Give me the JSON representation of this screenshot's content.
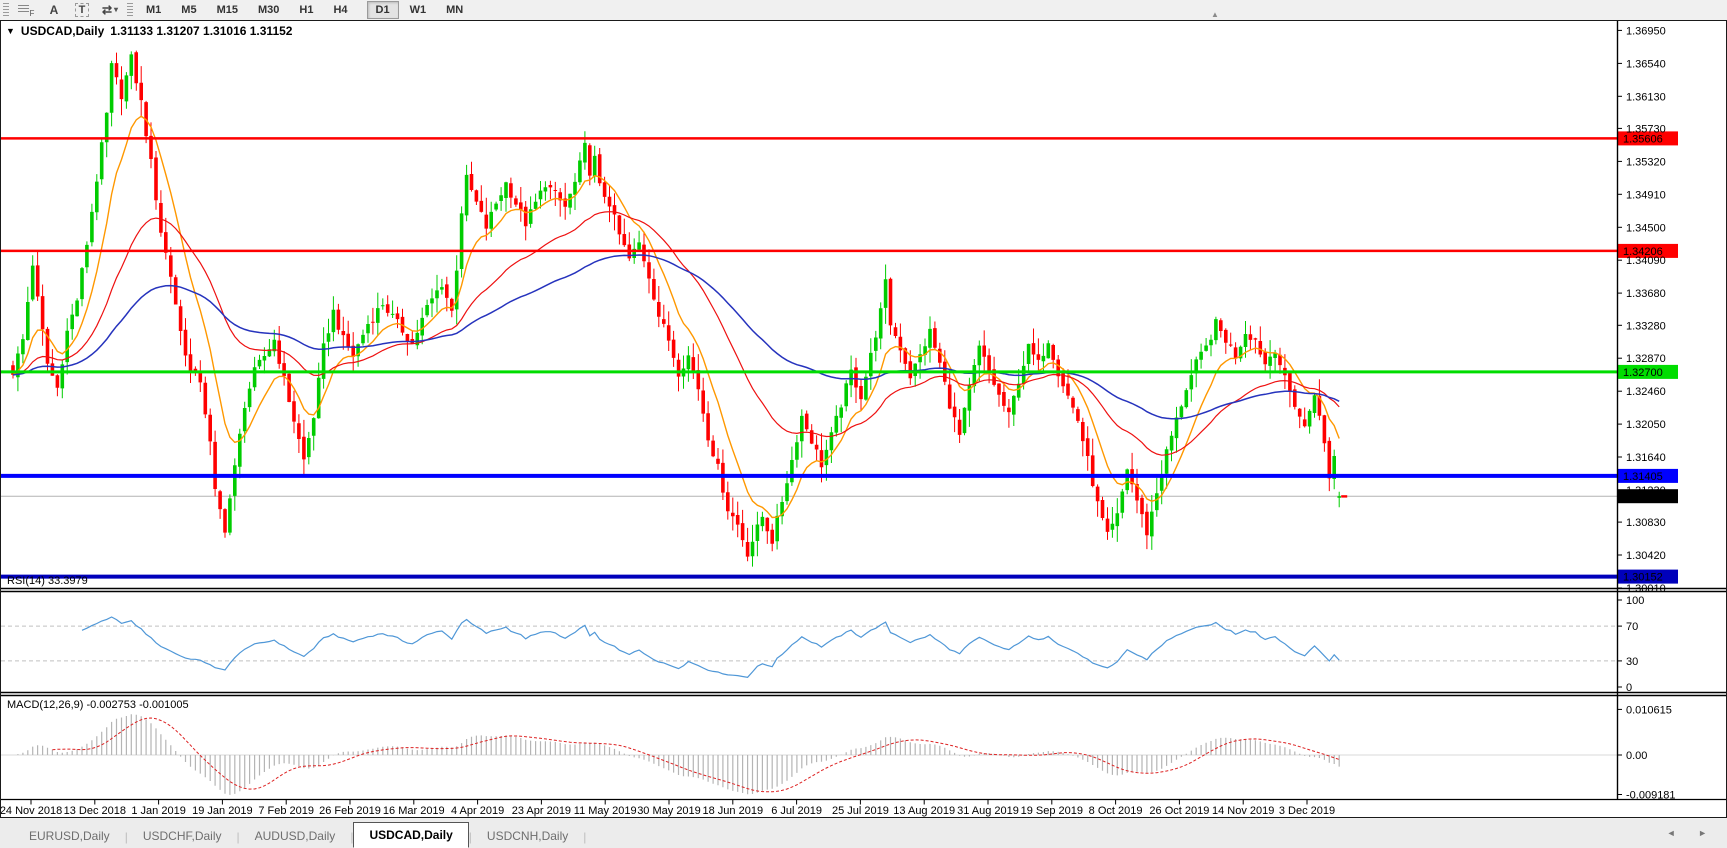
{
  "toolbar": {
    "icons": [
      {
        "name": "grid-f-icon",
        "glyph": "F"
      },
      {
        "name": "text-a-icon",
        "glyph": "A"
      },
      {
        "name": "textbox-t-icon",
        "glyph": "T"
      },
      {
        "name": "arrows-tool-icon",
        "glyph": "⇄",
        "caret": "▾"
      }
    ],
    "timeframes": [
      "M1",
      "M5",
      "M15",
      "M30",
      "H1",
      "H4",
      "D1",
      "W1",
      "MN"
    ],
    "active_timeframe": "D1",
    "shift_marker_glyph": "▲"
  },
  "chart": {
    "collapse_glyph": "▼",
    "symbol_label": "USDCAD,Daily",
    "ohlc_label": "1.31133 1.31207 1.31016 1.31152"
  },
  "indicators": {
    "rsi_label": "RSI(14) 33.3979",
    "macd_label": "MACD(12,26,9) -0.002753 -0.001005"
  },
  "tabs": {
    "items": [
      "EURUSD,Daily",
      "USDCHF,Daily",
      "AUDUSD,Daily",
      "USDCAD,Daily",
      "USDCNH,Daily"
    ],
    "active": "USDCAD,Daily",
    "scroll_left_glyph": "◄",
    "scroll_right_glyph": "►"
  },
  "chart_data": {
    "type": "candlestick",
    "symbol": "USDCAD",
    "timeframe": "Daily",
    "title": "USDCAD,Daily",
    "ohlc_display": {
      "open": "1.31133",
      "high": "1.31207",
      "low": "1.31016",
      "close": "1.31152"
    },
    "y_range": [
      1.3001,
      1.3703
    ],
    "price_axis_ticks": [
      "1.36950",
      "1.36540",
      "1.36130",
      "1.35730",
      "1.35320",
      "1.34910",
      "1.34500",
      "1.34090",
      "1.33680",
      "1.33280",
      "1.32870",
      "1.32460",
      "1.32050",
      "1.31640",
      "1.31230",
      "1.30830",
      "1.30420",
      "1.30010"
    ],
    "date_labels": [
      "24 Nov 2018",
      "13 Dec 2018",
      "1 Jan 2019",
      "19 Jan 2019",
      "7 Feb 2019",
      "26 Feb 2019",
      "16 Mar 2019",
      "4 Apr 2019",
      "23 Apr 2019",
      "11 May 2019",
      "30 May 2019",
      "18 Jun 2019",
      "6 Jul 2019",
      "25 Jul 2019",
      "13 Aug 2019",
      "31 Aug 2019",
      "19 Sep 2019",
      "8 Oct 2019",
      "26 Oct 2019",
      "14 Nov 2019",
      "3 Dec 2019"
    ],
    "levels": [
      {
        "value": 1.35606,
        "label": "1.35606",
        "color": "#ff0000",
        "text_color": "#ffffff",
        "thickness": 2.5
      },
      {
        "value": 1.34206,
        "label": "1.34206",
        "color": "#ff0000",
        "text_color": "#ffffff",
        "thickness": 2.5
      },
      {
        "value": 1.327,
        "label": "1.32700",
        "color": "#00dd00",
        "text_color": "#000000",
        "thickness": 3
      },
      {
        "value": 1.31405,
        "label": "1.31405",
        "color": "#0000ff",
        "text_color": "#ffffff",
        "thickness": 4
      },
      {
        "value": 1.30152,
        "label": "1.30152",
        "color": "#0000bb",
        "text_color": "#ffffff",
        "thickness": 4
      }
    ],
    "current_price": {
      "value": 1.31152,
      "label": "1.31152",
      "line_color": "#b4b4b4",
      "label_bg": "#000000",
      "label_fg": "#ffffff"
    },
    "candles": {
      "count": 270,
      "up_color": "#00cc00",
      "down_color": "#ff0000",
      "last_ohlc": {
        "open": 1.31133,
        "high": 1.31207,
        "low": 1.31016,
        "close": 1.31152
      }
    },
    "close_anchors": [
      [
        0,
        1.327
      ],
      [
        2,
        1.331
      ],
      [
        4,
        1.3405
      ],
      [
        5,
        1.336
      ],
      [
        7,
        1.328
      ],
      [
        9,
        1.325
      ],
      [
        11,
        1.332
      ],
      [
        13,
        1.336
      ],
      [
        15,
        1.343
      ],
      [
        17,
        1.351
      ],
      [
        19,
        1.359
      ],
      [
        20,
        1.365
      ],
      [
        22,
        1.3615
      ],
      [
        24,
        1.366
      ],
      [
        26,
        1.3605
      ],
      [
        28,
        1.353
      ],
      [
        30,
        1.3445
      ],
      [
        32,
        1.339
      ],
      [
        34,
        1.332
      ],
      [
        36,
        1.327
      ],
      [
        38,
        1.326
      ],
      [
        40,
        1.318
      ],
      [
        41,
        1.312
      ],
      [
        43,
        1.3075
      ],
      [
        45,
        1.315
      ],
      [
        47,
        1.323
      ],
      [
        49,
        1.327
      ],
      [
        51,
        1.329
      ],
      [
        53,
        1.331
      ],
      [
        55,
        1.326
      ],
      [
        57,
        1.321
      ],
      [
        59,
        1.316
      ],
      [
        61,
        1.3215
      ],
      [
        63,
        1.33
      ],
      [
        65,
        1.3345
      ],
      [
        67,
        1.331
      ],
      [
        69,
        1.329
      ],
      [
        72,
        1.333
      ],
      [
        75,
        1.3355
      ],
      [
        78,
        1.333
      ],
      [
        81,
        1.3305
      ],
      [
        84,
        1.335
      ],
      [
        87,
        1.338
      ],
      [
        89,
        1.3345
      ],
      [
        90,
        1.34
      ],
      [
        91,
        1.347
      ],
      [
        92,
        1.351
      ],
      [
        94,
        1.348
      ],
      [
        96,
        1.345
      ],
      [
        98,
        1.348
      ],
      [
        100,
        1.3505
      ],
      [
        102,
        1.348
      ],
      [
        104,
        1.3455
      ],
      [
        106,
        1.348
      ],
      [
        108,
        1.3505
      ],
      [
        110,
        1.349
      ],
      [
        112,
        1.3475
      ],
      [
        114,
        1.3505
      ],
      [
        116,
        1.355
      ],
      [
        117,
        1.352
      ],
      [
        118,
        1.3535
      ],
      [
        119,
        1.35
      ],
      [
        121,
        1.348
      ],
      [
        123,
        1.344
      ],
      [
        125,
        1.341
      ],
      [
        127,
        1.343
      ],
      [
        129,
        1.339
      ],
      [
        131,
        1.334
      ],
      [
        133,
        1.331
      ],
      [
        135,
        1.327
      ],
      [
        137,
        1.329
      ],
      [
        139,
        1.325
      ],
      [
        141,
        1.319
      ],
      [
        143,
        1.315
      ],
      [
        145,
        1.31
      ],
      [
        147,
        1.308
      ],
      [
        149,
        1.3045
      ],
      [
        150,
        1.306
      ],
      [
        152,
        1.309
      ],
      [
        154,
        1.306
      ],
      [
        156,
        1.311
      ],
      [
        158,
        1.316
      ],
      [
        160,
        1.3215
      ],
      [
        162,
        1.3185
      ],
      [
        164,
        1.3155
      ],
      [
        166,
        1.319
      ],
      [
        168,
        1.323
      ],
      [
        170,
        1.327
      ],
      [
        172,
        1.324
      ],
      [
        174,
        1.329
      ],
      [
        176,
        1.3345
      ],
      [
        177,
        1.338
      ],
      [
        178,
        1.333
      ],
      [
        180,
        1.33
      ],
      [
        182,
        1.3265
      ],
      [
        184,
        1.329
      ],
      [
        186,
        1.332
      ],
      [
        188,
        1.328
      ],
      [
        190,
        1.323
      ],
      [
        192,
        1.319
      ],
      [
        194,
        1.325
      ],
      [
        196,
        1.33
      ],
      [
        198,
        1.327
      ],
      [
        200,
        1.324
      ],
      [
        202,
        1.3215
      ],
      [
        204,
        1.326
      ],
      [
        206,
        1.33
      ],
      [
        208,
        1.328
      ],
      [
        210,
        1.331
      ],
      [
        212,
        1.327
      ],
      [
        214,
        1.324
      ],
      [
        216,
        1.321
      ],
      [
        218,
        1.316
      ],
      [
        220,
        1.3105
      ],
      [
        222,
        1.3065
      ],
      [
        224,
        1.309
      ],
      [
        226,
        1.315
      ],
      [
        228,
        1.311
      ],
      [
        230,
        1.307
      ],
      [
        232,
        1.312
      ],
      [
        234,
        1.317
      ],
      [
        236,
        1.321
      ],
      [
        238,
        1.325
      ],
      [
        240,
        1.328
      ],
      [
        242,
        1.33
      ],
      [
        244,
        1.333
      ],
      [
        246,
        1.331
      ],
      [
        248,
        1.329
      ],
      [
        250,
        1.332
      ],
      [
        252,
        1.331
      ],
      [
        254,
        1.328
      ],
      [
        256,
        1.33
      ],
      [
        258,
        1.326
      ],
      [
        260,
        1.323
      ],
      [
        262,
        1.32
      ],
      [
        264,
        1.3245
      ],
      [
        266,
        1.318
      ],
      [
        267,
        1.314
      ],
      [
        268,
        1.3165
      ],
      [
        269,
        1.31152
      ]
    ],
    "moving_averages": [
      {
        "name": "fast",
        "period": 10,
        "color": "#ff9800",
        "width": 1.4
      },
      {
        "name": "medium",
        "period": 34,
        "color": "#ee1111",
        "width": 1.2
      },
      {
        "name": "slow",
        "period": 80,
        "color": "#2633bd",
        "width": 1.5
      }
    ],
    "rsi": {
      "period": 14,
      "value": 33.3979,
      "color": "#4f97d7",
      "levels": [
        70,
        30
      ],
      "axis_ticks": [
        {
          "label": "100",
          "value": 100
        },
        {
          "label": "70",
          "value": 70
        },
        {
          "label": "30",
          "value": 30
        },
        {
          "label": "0",
          "value": 0
        }
      ]
    },
    "macd": {
      "fast": 12,
      "slow": 26,
      "signal": 9,
      "main_value": -0.002753,
      "signal_value": -0.001005,
      "hist_color": "#b5b5b5",
      "signal_color": "#dd2222",
      "axis_ticks": [
        {
          "label": "0.010615",
          "value": 0.010615
        },
        {
          "label": "0.00",
          "value": 0
        },
        {
          "label": "-0.009181",
          "value": -0.009181
        }
      ]
    }
  }
}
